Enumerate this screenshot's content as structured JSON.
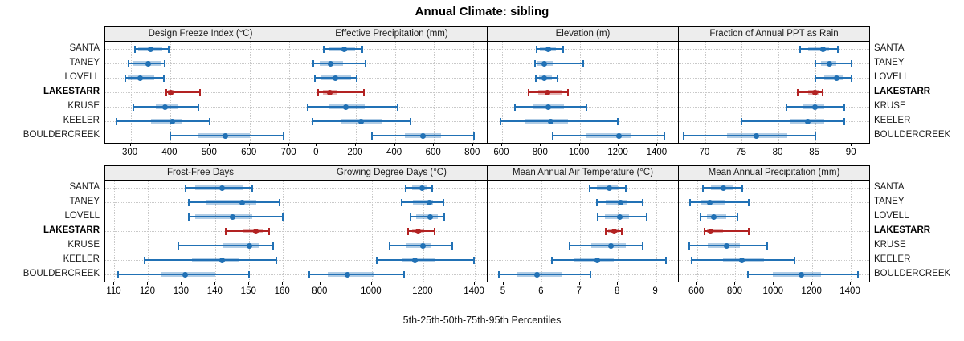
{
  "title": "Annual Climate: sibling",
  "caption": "5th-25th-50th-75th-95th Percentiles",
  "sites": [
    "SANTA",
    "TANEY",
    "LOVELL",
    "LAKESTARR",
    "KRUSE",
    "KEELER",
    "BOULDERCREEK"
  ],
  "highlighted_site": "LAKESTARR",
  "colors": {
    "series": "#2171b5",
    "highlight": "#b22222",
    "grid": "#c9c9c9",
    "header_bg": "#ededed",
    "panel_border": "#000000"
  },
  "chart_data": {
    "type": "dot-whisker",
    "percentile_labels": [
      "5th",
      "25th",
      "50th",
      "75th",
      "95th"
    ],
    "categories": [
      "SANTA",
      "TANEY",
      "LOVELL",
      "LAKESTARR",
      "KRUSE",
      "KEELER",
      "BOULDERCREEK"
    ],
    "panels_per_row": 4,
    "grid": "dotted",
    "panels": [
      {
        "title": "Design Freeze Index (°C)",
        "ticks": [
          300,
          400,
          500,
          600,
          700
        ],
        "xlim": [
          238,
          718
        ],
        "values": [
          [
            310,
            320,
            350,
            380,
            395
          ],
          [
            295,
            305,
            345,
            375,
            386
          ],
          [
            286,
            292,
            325,
            360,
            383
          ],
          [
            390,
            394,
            402,
            410,
            475
          ],
          [
            307,
            364,
            386,
            418,
            471
          ],
          [
            264,
            352,
            406,
            428,
            500
          ],
          [
            400,
            470,
            539,
            600,
            686
          ]
        ]
      },
      {
        "title": "Effective Precipitation (mm)",
        "ticks": [
          0,
          200,
          400,
          600,
          800
        ],
        "xlim": [
          -100,
          875
        ],
        "values": [
          [
            35,
            65,
            140,
            195,
            233
          ],
          [
            -18,
            16,
            72,
            134,
            249
          ],
          [
            -8,
            24,
            95,
            176,
            203
          ],
          [
            6,
            30,
            68,
            105,
            241
          ],
          [
            -48,
            65,
            148,
            244,
            414
          ],
          [
            -20,
            127,
            226,
            334,
            481
          ],
          [
            281,
            451,
            543,
            637,
            807
          ]
        ]
      },
      {
        "title": "Elevation (m)",
        "ticks": [
          600,
          800,
          1000,
          1200,
          1400
        ],
        "xlim": [
          530,
          1510
        ],
        "values": [
          [
            778,
            796,
            837,
            879,
            913
          ],
          [
            768,
            782,
            819,
            865,
            1016
          ],
          [
            772,
            789,
            819,
            857,
            886
          ],
          [
            738,
            785,
            834,
            912,
            939
          ],
          [
            665,
            760,
            836,
            920,
            1034
          ],
          [
            591,
            720,
            850,
            940,
            1196
          ],
          [
            859,
            1031,
            1203,
            1268,
            1435
          ]
        ]
      },
      {
        "title": "Fraction of Annual PPT as Rain",
        "ticks": [
          70,
          75,
          80,
          85,
          90
        ],
        "xlim": [
          66.5,
          92.5
        ],
        "values": [
          [
            83,
            84.1,
            86.1,
            86.9,
            88.1
          ],
          [
            85,
            85.8,
            87,
            87.9,
            90
          ],
          [
            85,
            86.2,
            88,
            88.9,
            90
          ],
          [
            82.6,
            84,
            85,
            85.5,
            86
          ],
          [
            81.1,
            83.4,
            85,
            86.2,
            89
          ],
          [
            75,
            81.6,
            84,
            86.3,
            89
          ],
          [
            67.1,
            73,
            77,
            81.2,
            85
          ]
        ]
      },
      {
        "title": "Frost-Free Days",
        "ticks": [
          110,
          120,
          130,
          140,
          150,
          160
        ],
        "xlim": [
          107.5,
          164
        ],
        "values": [
          [
            131,
            134,
            142,
            148,
            151
          ],
          [
            132,
            137,
            148,
            152,
            159
          ],
          [
            132,
            134,
            145,
            151,
            160
          ],
          [
            143,
            148,
            152,
            154,
            156
          ],
          [
            129,
            142,
            150,
            153,
            157
          ],
          [
            119,
            133,
            142,
            147,
            158
          ],
          [
            111,
            124,
            131,
            140,
            150
          ]
        ]
      },
      {
        "title": "Growing Degree Days (°C)",
        "ticks": [
          800,
          1000,
          1200,
          1400
        ],
        "xlim": [
          710,
          1450
        ],
        "values": [
          [
            1130,
            1158,
            1197,
            1214,
            1234
          ],
          [
            1117,
            1161,
            1223,
            1239,
            1278
          ],
          [
            1151,
            1171,
            1226,
            1255,
            1281
          ],
          [
            1141,
            1156,
            1179,
            1202,
            1245
          ],
          [
            1068,
            1136,
            1198,
            1231,
            1312
          ],
          [
            1018,
            1115,
            1167,
            1245,
            1397
          ],
          [
            757,
            830,
            904,
            1011,
            1125
          ]
        ]
      },
      {
        "title": "Mean Annual Air Temperature (°C)",
        "ticks": [
          5,
          6,
          7,
          8,
          9
        ],
        "xlim": [
          4.6,
          9.6
        ],
        "values": [
          [
            7.25,
            7.45,
            7.77,
            8.0,
            8.2
          ],
          [
            7.45,
            7.67,
            8.08,
            8.24,
            8.65
          ],
          [
            7.46,
            7.65,
            8.04,
            8.3,
            8.75
          ],
          [
            7.69,
            7.75,
            7.9,
            8.02,
            8.1
          ],
          [
            6.74,
            7.3,
            7.82,
            8.2,
            8.65
          ],
          [
            6.26,
            6.86,
            7.46,
            7.9,
            9.27
          ],
          [
            4.87,
            5.37,
            5.87,
            6.52,
            7.28
          ]
        ]
      },
      {
        "title": "Mean Annual Precipitation (mm)",
        "ticks": [
          600,
          800,
          1000,
          1200,
          1400
        ],
        "xlim": [
          510,
          1500
        ],
        "values": [
          [
            633,
            672,
            737,
            787,
            835
          ],
          [
            564,
            619,
            668,
            748,
            869
          ],
          [
            619,
            650,
            689,
            751,
            809
          ],
          [
            640,
            650,
            672,
            736,
            869
          ],
          [
            561,
            658,
            754,
            823,
            966
          ],
          [
            571,
            737,
            833,
            950,
            1108
          ],
          [
            866,
            996,
            1142,
            1247,
            1437
          ]
        ]
      }
    ]
  }
}
